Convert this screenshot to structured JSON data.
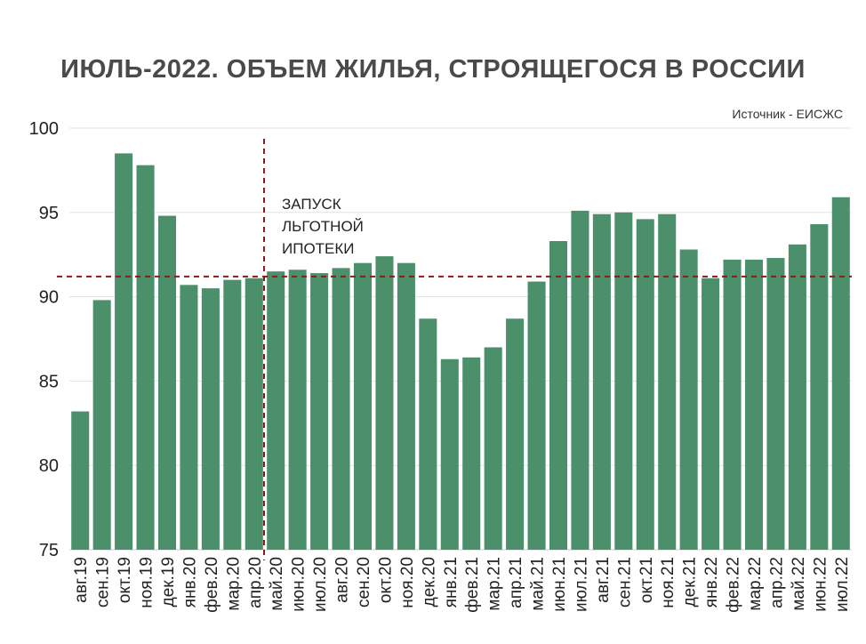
{
  "chart_data": {
    "type": "bar",
    "title": "ИЮЛЬ-2022. ОБЪЕМ ЖИЛЬЯ, СТРОЯЩЕГОСЯ В РОССИИ",
    "source": "Источник - ЕИСЖС",
    "xlabel": "",
    "ylabel": "",
    "ylim": [
      75,
      100
    ],
    "yticks": [
      75,
      80,
      85,
      90,
      95,
      100
    ],
    "grid": true,
    "bar_color": "#4b8f6b",
    "reference_line_color": "#8b1a1a",
    "categories": [
      "авг.19",
      "сен.19",
      "окт.19",
      "ноя.19",
      "дек.19",
      "янв.20",
      "фев.20",
      "мар.20",
      "апр.20",
      "май.20",
      "июн.20",
      "июл.20",
      "авг.20",
      "сен.20",
      "окт.20",
      "ноя.20",
      "дек.20",
      "янв.21",
      "фев.21",
      "мар.21",
      "апр.21",
      "май.21",
      "июн.21",
      "июл.21",
      "авг.21",
      "сен.21",
      "окт.21",
      "ноя.21",
      "дек.21",
      "янв.22",
      "фев.22",
      "мар.22",
      "апр.22",
      "май.22",
      "июн.22",
      "июл.22"
    ],
    "values": [
      83.2,
      89.8,
      98.5,
      97.8,
      94.8,
      90.7,
      90.5,
      91.0,
      91.1,
      91.5,
      91.6,
      91.4,
      91.7,
      92.0,
      92.4,
      92.0,
      88.7,
      86.3,
      86.4,
      87.0,
      88.7,
      90.9,
      93.3,
      95.1,
      94.9,
      95.0,
      94.6,
      94.9,
      92.8,
      91.1,
      92.2,
      92.2,
      92.3,
      93.1,
      94.3,
      95.9
    ],
    "reference_line": 91.2,
    "event_line_category": "апр.20",
    "annotation_lines": [
      "ЗАПУСК",
      "ЛЬГОТНОЙ",
      "ИПОТЕКИ"
    ]
  }
}
